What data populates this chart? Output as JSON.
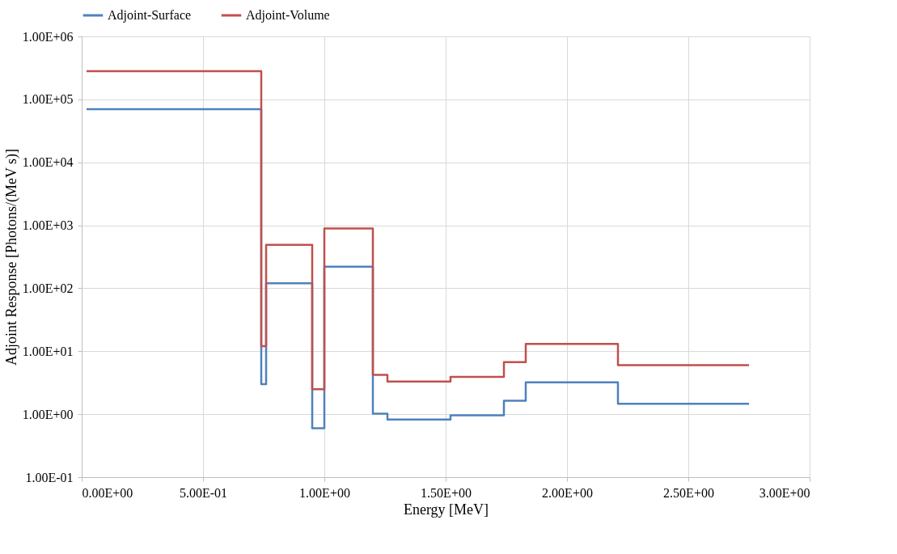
{
  "chart_data": {
    "type": "step",
    "xlabel": "Energy [MeV]",
    "ylabel": "Adjoint Response [Photons/(MeV s)]",
    "log": "y",
    "grid": true,
    "legend": "top",
    "line_style": "solid",
    "marker": "none",
    "x": [
      0.02,
      0.74,
      0.76,
      0.95,
      1.0,
      1.2,
      1.26,
      1.52,
      1.74,
      1.83,
      2.21,
      2.75
    ],
    "series": [
      {
        "name": "Adjoint-Surface",
        "color": "#4f81bd",
        "values": [
          70000,
          3.0,
          120,
          0.6,
          220,
          1.02,
          0.82,
          0.96,
          1.63,
          3.2,
          1.46,
          1.46
        ]
      },
      {
        "name": "Adjoint-Volume",
        "color": "#c0504d",
        "values": [
          280000,
          12,
          490,
          2.5,
          890,
          4.2,
          3.3,
          3.9,
          6.7,
          13.1,
          6.0,
          6.0
        ]
      }
    ],
    "xlim": [
      0,
      3.0
    ],
    "xticks": [
      {
        "value": 0,
        "label": "0.00E+00"
      },
      {
        "value": 0.5,
        "label": "5.00E-01"
      },
      {
        "value": 1.0,
        "label": "1.00E+00"
      },
      {
        "value": 1.5,
        "label": "1.50E+00"
      },
      {
        "value": 2.0,
        "label": "2.00E+00"
      },
      {
        "value": 2.5,
        "label": "2.50E+00"
      },
      {
        "value": 3.0,
        "label": "3.00E+00"
      }
    ],
    "ylim": [
      0.1,
      1000000
    ],
    "yticks": [
      {
        "value": 0.1,
        "label": "1.00E-01"
      },
      {
        "value": 1,
        "label": "1.00E+00"
      },
      {
        "value": 10,
        "label": "1.00E+01"
      },
      {
        "value": 100,
        "label": "1.00E+02"
      },
      {
        "value": 1000,
        "label": "1.00E+03"
      },
      {
        "value": 10000,
        "label": "1.00E+04"
      },
      {
        "value": 100000,
        "label": "1.00E+05"
      },
      {
        "value": 1000000,
        "label": "1.00E+06"
      }
    ]
  }
}
